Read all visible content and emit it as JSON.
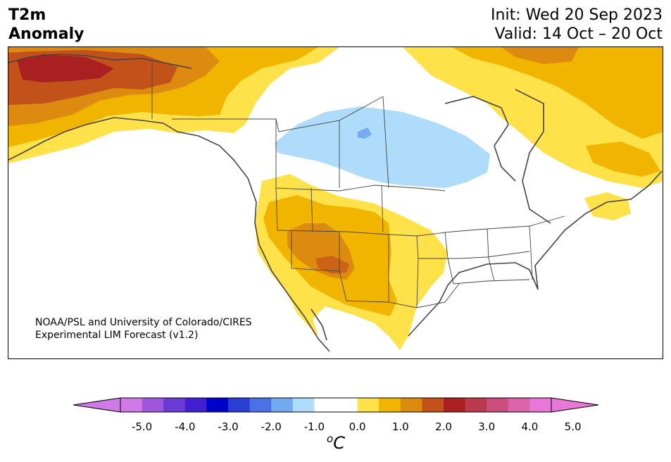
{
  "header": {
    "title_line1": "T2m",
    "title_line2": "Anomaly",
    "init_text": "Init: Wed 20 Sep 2023",
    "valid_text": "Valid: 14 Oct – 20 Oct"
  },
  "credit": {
    "line1": "NOAA/PSL and University of Colorado/CIRES",
    "line2": "Experimental LIM Forecast (v1.2)"
  },
  "colorbar": {
    "ticks": [
      "-5.0",
      "-4.0",
      "-3.0",
      "-2.0",
      "-1.0",
      "0.0",
      "1.0",
      "2.0",
      "3.0",
      "4.0",
      "5.0"
    ],
    "unit_main": "C",
    "unit_sup": "o",
    "colors": [
      "#d07ae8",
      "#9e57dc",
      "#6a3bd6",
      "#3f1fd0",
      "#0000cc",
      "#2a3ed6",
      "#4a72e6",
      "#74aaf0",
      "#aedcfa",
      "#ffffff",
      "#ffffff",
      "#ffe14a",
      "#f1b500",
      "#dc8a10",
      "#c2521a",
      "#aa2020",
      "#bb3a4e",
      "#cb4e7c",
      "#dc62ac",
      "#e878d8"
    ],
    "under_color": "#d07ae8",
    "over_color": "#e878d8"
  },
  "map_colors": {
    "light_blue": "#aedcfa",
    "blue": "#74aaf0",
    "yellow": "#ffe14a",
    "gold": "#f1b500",
    "orange": "#dc8a10",
    "dark_orange": "#c2521a",
    "red": "#aa2020",
    "coast": "#444444"
  }
}
